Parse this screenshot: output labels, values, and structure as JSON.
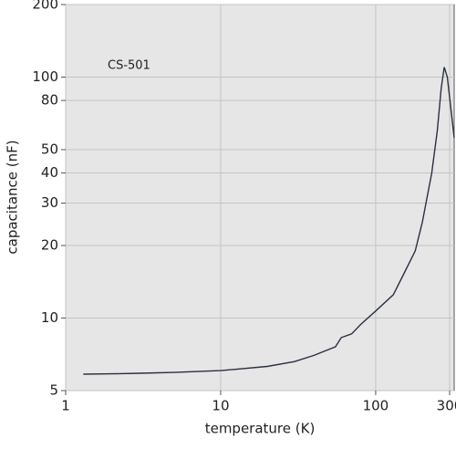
{
  "chart_data": {
    "type": "line",
    "xlabel": "temperature (K)",
    "ylabel": "capacitance (nF)",
    "annotation": "CS-501",
    "x_log": true,
    "y_log": true,
    "grid": true,
    "xlim": [
      1,
      321
    ],
    "ylim": [
      5,
      200
    ],
    "xticks": [
      1,
      10,
      100,
      300
    ],
    "yticks": [
      5,
      10,
      20,
      30,
      40,
      50,
      80,
      100,
      200
    ],
    "series": [
      {
        "color": "#2a3040",
        "x": [
          1.3,
          2,
          3,
          5,
          10,
          20,
          30,
          40,
          55,
          60,
          70,
          80,
          100,
          130,
          150,
          180,
          200,
          230,
          250,
          265,
          277,
          290,
          305,
          321
        ],
        "values": [
          5.85,
          5.87,
          5.9,
          5.95,
          6.05,
          6.3,
          6.6,
          7.0,
          7.6,
          8.3,
          8.6,
          9.4,
          10.7,
          12.5,
          15,
          19,
          25,
          40,
          60,
          90,
          110,
          100,
          75,
          56
        ]
      }
    ]
  }
}
